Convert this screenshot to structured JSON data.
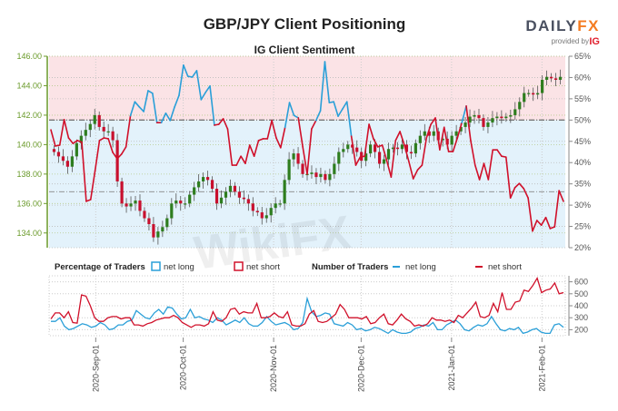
{
  "header": {
    "title": "GBP/JPY Client Positioning",
    "logo_main": "DAILYFX",
    "logo_sub": "provided by",
    "logo_ig": "IG"
  },
  "colors": {
    "net_long": "#2a9fd8",
    "net_short": "#d0102a",
    "bull": "#2e7d1e",
    "bear": "#c8102e",
    "pink_bg": "#fbe3e6",
    "blue_bg": "#e3f2fb",
    "axis_green": "#6a9a2a"
  },
  "chart_data": [
    {
      "type": "line",
      "title": "IG Client Sentiment",
      "x_range": [
        "2020-08-16",
        "2021-02-09"
      ],
      "x_ticks": [
        "2020-Sep-01",
        "2020-Oct-01",
        "2020-Nov-01",
        "2020-Dec-01",
        "2021-Jan-01",
        "2021-Feb-01"
      ],
      "price_axis": {
        "range": [
          133,
          146
        ],
        "ticks": [
          "134.00",
          "136.00",
          "138.00",
          "140.00",
          "142.00",
          "144.00",
          "146.00"
        ]
      },
      "percent_axis": {
        "range": [
          20,
          65
        ],
        "ticks": [
          "20%",
          "25%",
          "30%",
          "35%",
          "40%",
          "45%",
          "50%",
          "55%",
          "60%",
          "65%"
        ]
      },
      "reference_lines": {
        "percent": 50,
        "price": 136.8
      },
      "price_close": [
        139.5,
        139.2,
        138.9,
        138.5,
        139.2,
        140.1,
        140.6,
        141.0,
        141.4,
        142.0,
        141.2,
        140.9,
        140.9,
        140.3,
        137.5,
        136.0,
        135.8,
        136.0,
        136.2,
        135.5,
        135.0,
        134.6,
        133.7,
        134.1,
        134.4,
        135.0,
        136.0,
        136.2,
        136.0,
        136.0,
        136.6,
        137.1,
        137.5,
        137.8,
        137.6,
        137.0,
        136.0,
        136.4,
        136.8,
        137.2,
        136.8,
        136.4,
        136.3,
        136.0,
        135.5,
        135.4,
        135.0,
        135.2,
        135.7,
        136.0,
        136.0,
        137.6,
        139.0,
        139.4,
        138.7,
        138.0,
        138.0,
        138.1,
        137.8,
        138.0,
        137.6,
        138.0,
        138.7,
        139.5,
        139.7,
        140.0,
        139.8,
        139.5,
        138.9,
        139.4,
        140.0,
        139.5,
        138.7,
        139.0,
        139.7,
        139.8,
        139.7,
        140.0,
        139.5,
        139.4,
        140.1,
        140.6,
        140.9,
        140.6,
        140.9,
        140.3,
        140.4,
        140.0,
        140.6,
        140.9,
        141.2,
        141.5,
        141.9,
        142.0,
        141.8,
        141.2,
        141.5,
        141.8,
        141.9,
        141.8,
        141.9,
        142.0,
        142.4,
        142.9,
        143.5,
        143.5,
        143.4,
        143.5,
        144.4,
        144.6,
        144.5,
        144.4,
        144.6
      ],
      "net_long_percent": [
        47.7,
        43.9,
        44.1,
        50.1,
        45.8,
        44.5,
        45.2,
        44.8,
        30.9,
        31.3,
        38.1,
        45.2,
        45.8,
        45.6,
        42.4,
        40.9,
        42.0,
        43.7,
        51.0,
        54.3,
        53.1,
        52.0,
        56.9,
        56.3,
        49.4,
        49.4,
        51.6,
        49.9,
        53.1,
        55.8,
        62.9,
        60.3,
        60.1,
        61.6,
        54.8,
        56.5,
        58.0,
        48.8,
        49.0,
        50.3,
        47.9,
        39.4,
        39.4,
        41.5,
        39.8,
        44.1,
        41.5,
        45.2,
        45.6,
        45.6,
        49.9,
        45.8,
        43.5,
        48.3,
        54.1,
        51.1,
        50.5,
        43.7,
        37.3,
        47.9,
        49.9,
        52.2,
        63.7,
        54.1,
        54.3,
        50.9,
        52.6,
        54.3,
        46.2,
        39.4,
        41.3,
        41.5,
        49.0,
        45.6,
        43.7,
        44.1,
        40.5,
        36.6,
        45.2,
        47.3,
        44.1,
        40.3,
        36.2,
        38.3,
        39.4,
        45.8,
        49.0,
        50.5,
        43.0,
        48.3,
        42.6,
        42.6,
        45.8,
        49.4,
        53.3,
        45.2,
        39.4,
        36.0,
        39.8,
        36.0,
        43.0,
        43.0,
        41.5,
        41.3,
        31.7,
        34.1,
        35.1,
        33.9,
        31.7,
        23.9,
        26.4,
        25.3,
        27.1,
        24.5,
        24.9,
        33.4,
        30.9
      ]
    },
    {
      "type": "line",
      "title": "Number of Traders",
      "y_axis": {
        "range": [
          150,
          650
        ],
        "ticks": [
          "200",
          "300",
          "400",
          "500",
          "600"
        ]
      },
      "series": [
        {
          "name": "net long",
          "values": [
            270,
            270,
            300,
            230,
            200,
            210,
            230,
            250,
            240,
            220,
            230,
            260,
            240,
            200,
            210,
            240,
            240,
            270,
            280,
            360,
            330,
            300,
            290,
            340,
            370,
            330,
            390,
            380,
            330,
            290,
            300,
            370,
            300,
            310,
            290,
            280,
            260,
            300,
            280,
            240,
            260,
            280,
            260,
            300,
            250,
            230,
            230,
            260,
            310,
            270,
            240,
            250,
            260,
            240,
            200,
            210,
            260,
            460,
            350,
            310,
            320,
            340,
            330,
            250,
            240,
            230,
            260,
            240,
            200,
            210,
            190,
            200,
            220,
            210,
            190,
            170,
            200,
            180,
            170,
            170,
            180,
            210,
            220,
            240,
            230,
            260,
            200,
            200,
            240,
            260,
            280,
            250,
            200,
            190,
            220,
            240,
            230,
            250,
            310,
            250,
            200,
            190,
            210,
            200,
            220,
            170,
            180,
            200,
            210,
            180,
            170,
            170,
            240,
            250,
            220
          ]
        },
        {
          "name": "net short",
          "values": [
            290,
            340,
            340,
            300,
            350,
            260,
            255,
            490,
            480,
            400,
            300,
            270,
            270,
            300,
            310,
            310,
            290,
            300,
            300,
            240,
            240,
            230,
            250,
            260,
            280,
            290,
            300,
            300,
            320,
            300,
            260,
            240,
            220,
            240,
            240,
            230,
            250,
            350,
            280,
            270,
            300,
            370,
            380,
            330,
            350,
            340,
            340,
            420,
            300,
            300,
            310,
            340,
            310,
            300,
            350,
            240,
            230,
            230,
            250,
            330,
            360,
            270,
            260,
            270,
            300,
            330,
            410,
            370,
            300,
            300,
            300,
            290,
            310,
            250,
            260,
            300,
            330,
            250,
            240,
            280,
            330,
            290,
            270,
            230,
            240,
            230,
            250,
            300,
            280,
            280,
            270,
            280,
            260,
            320,
            300,
            340,
            380,
            430,
            310,
            300,
            320,
            420,
            350,
            510,
            370,
            370,
            430,
            440,
            530,
            520,
            570,
            630,
            510,
            530,
            540,
            590,
            500,
            510
          ]
        }
      ]
    }
  ],
  "legend": {
    "pct_label": "Percentage of Traders",
    "pct_long": "net long",
    "pct_short": "net short",
    "num_label": "Number of Traders",
    "num_long": "net long",
    "num_short": "net short"
  }
}
